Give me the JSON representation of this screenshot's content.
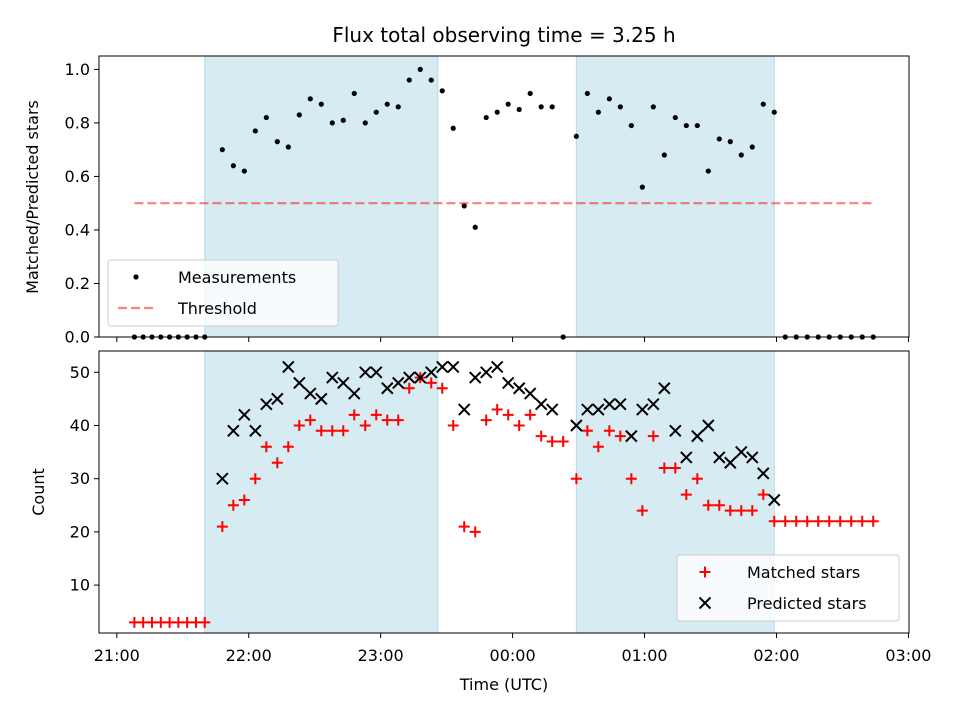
{
  "chart_data": [
    {
      "type": "scatter",
      "title": "Flux total observing time = 3.25 h",
      "xlabel": "",
      "ylabel": "Matched/Predicted stars",
      "ylim": [
        0,
        1.05
      ],
      "yticks": [
        "0.0",
        "0.2",
        "0.4",
        "0.6",
        "0.8",
        "1.0"
      ],
      "ytick_values": [
        0,
        0.2,
        0.4,
        0.6,
        0.8,
        1.0
      ],
      "x_range": [
        "21:00",
        "03:00"
      ],
      "shaded_intervals": [
        [
          "21:40",
          "23:26"
        ],
        [
          "00:29",
          "01:59"
        ]
      ],
      "shade_color": "#add8e6",
      "legend_position": "lower-left",
      "series": [
        {
          "name": "Measurements",
          "marker": "dot",
          "color": "#000000",
          "points": [
            [
              "21:08",
              0
            ],
            [
              "21:12",
              0
            ],
            [
              "21:16",
              0
            ],
            [
              "21:20",
              0
            ],
            [
              "21:24",
              0
            ],
            [
              "21:28",
              0
            ],
            [
              "21:32",
              0
            ],
            [
              "21:36",
              0
            ],
            [
              "21:40",
              0
            ],
            [
              "21:48",
              0.7
            ],
            [
              "21:53",
              0.64
            ],
            [
              "21:58",
              0.62
            ],
            [
              "22:03",
              0.77
            ],
            [
              "22:08",
              0.82
            ],
            [
              "22:13",
              0.73
            ],
            [
              "22:18",
              0.71
            ],
            [
              "22:23",
              0.83
            ],
            [
              "22:28",
              0.89
            ],
            [
              "22:33",
              0.87
            ],
            [
              "22:38",
              0.8
            ],
            [
              "22:43",
              0.81
            ],
            [
              "22:48",
              0.91
            ],
            [
              "22:53",
              0.8
            ],
            [
              "22:58",
              0.84
            ],
            [
              "23:03",
              0.87
            ],
            [
              "23:08",
              0.86
            ],
            [
              "23:13",
              0.96
            ],
            [
              "23:18",
              1.0
            ],
            [
              "23:23",
              0.96
            ],
            [
              "23:28",
              0.92
            ],
            [
              "23:33",
              0.78
            ],
            [
              "23:38",
              0.49
            ],
            [
              "23:43",
              0.41
            ],
            [
              "23:48",
              0.82
            ],
            [
              "23:53",
              0.84
            ],
            [
              "23:58",
              0.87
            ],
            [
              "00:03",
              0.85
            ],
            [
              "00:08",
              0.91
            ],
            [
              "00:13",
              0.86
            ],
            [
              "00:18",
              0.86
            ],
            [
              "00:23",
              0.0
            ],
            [
              "00:29",
              0.75
            ],
            [
              "00:34",
              0.91
            ],
            [
              "00:39",
              0.84
            ],
            [
              "00:44",
              0.89
            ],
            [
              "00:49",
              0.86
            ],
            [
              "00:54",
              0.79
            ],
            [
              "00:59",
              0.56
            ],
            [
              "01:04",
              0.86
            ],
            [
              "01:09",
              0.68
            ],
            [
              "01:14",
              0.82
            ],
            [
              "01:19",
              0.79
            ],
            [
              "01:24",
              0.79
            ],
            [
              "01:29",
              0.62
            ],
            [
              "01:34",
              0.74
            ],
            [
              "01:39",
              0.73
            ],
            [
              "01:44",
              0.68
            ],
            [
              "01:49",
              0.71
            ],
            [
              "01:54",
              0.87
            ],
            [
              "01:59",
              0.84
            ],
            [
              "02:04",
              0
            ],
            [
              "02:09",
              0
            ],
            [
              "02:14",
              0
            ],
            [
              "02:19",
              0
            ],
            [
              "02:24",
              0
            ],
            [
              "02:29",
              0
            ],
            [
              "02:34",
              0
            ],
            [
              "02:39",
              0
            ],
            [
              "02:44",
              0
            ]
          ]
        },
        {
          "name": "Threshold",
          "marker": "dashed-line",
          "color": "#ff0000",
          "alpha": 0.5,
          "points": [
            [
              "21:08",
              0.5
            ],
            [
              "02:44",
              0.5
            ]
          ]
        }
      ]
    },
    {
      "type": "scatter",
      "title": "",
      "xlabel": "Time (UTC)",
      "ylabel": "Count",
      "ylim": [
        1,
        54
      ],
      "yticks": [
        "10",
        "20",
        "30",
        "40",
        "50"
      ],
      "ytick_values": [
        10,
        20,
        30,
        40,
        50
      ],
      "x_range": [
        "21:00",
        "03:00"
      ],
      "xticks": [
        "21:00",
        "22:00",
        "23:00",
        "00:00",
        "01:00",
        "02:00",
        "03:00"
      ],
      "shaded_intervals": [
        [
          "21:40",
          "23:26"
        ],
        [
          "00:29",
          "01:59"
        ]
      ],
      "shade_color": "#add8e6",
      "legend_position": "lower-right",
      "series": [
        {
          "name": "Matched stars",
          "marker": "plus",
          "color": "#ff0000",
          "points": [
            [
              "21:08",
              3
            ],
            [
              "21:12",
              3
            ],
            [
              "21:16",
              3
            ],
            [
              "21:20",
              3
            ],
            [
              "21:24",
              3
            ],
            [
              "21:28",
              3
            ],
            [
              "21:32",
              3
            ],
            [
              "21:36",
              3
            ],
            [
              "21:40",
              3
            ],
            [
              "21:48",
              21
            ],
            [
              "21:53",
              25
            ],
            [
              "21:58",
              26
            ],
            [
              "22:03",
              30
            ],
            [
              "22:08",
              36
            ],
            [
              "22:13",
              33
            ],
            [
              "22:18",
              36
            ],
            [
              "22:23",
              40
            ],
            [
              "22:28",
              41
            ],
            [
              "22:33",
              39
            ],
            [
              "22:38",
              39
            ],
            [
              "22:43",
              39
            ],
            [
              "22:48",
              42
            ],
            [
              "22:53",
              40
            ],
            [
              "22:58",
              42
            ],
            [
              "23:03",
              41
            ],
            [
              "23:08",
              41
            ],
            [
              "23:13",
              47
            ],
            [
              "23:18",
              49
            ],
            [
              "23:23",
              48
            ],
            [
              "23:28",
              47
            ],
            [
              "23:33",
              40
            ],
            [
              "23:38",
              21
            ],
            [
              "23:43",
              20
            ],
            [
              "23:48",
              41
            ],
            [
              "23:53",
              43
            ],
            [
              "23:58",
              42
            ],
            [
              "00:03",
              40
            ],
            [
              "00:08",
              42
            ],
            [
              "00:13",
              38
            ],
            [
              "00:18",
              37
            ],
            [
              "00:23",
              37
            ],
            [
              "00:29",
              30
            ],
            [
              "00:34",
              39
            ],
            [
              "00:39",
              36
            ],
            [
              "00:44",
              39
            ],
            [
              "00:49",
              38
            ],
            [
              "00:54",
              30
            ],
            [
              "00:59",
              24
            ],
            [
              "01:04",
              38
            ],
            [
              "01:09",
              32
            ],
            [
              "01:14",
              32
            ],
            [
              "01:19",
              27
            ],
            [
              "01:24",
              30
            ],
            [
              "01:29",
              25
            ],
            [
              "01:34",
              25
            ],
            [
              "01:39",
              24
            ],
            [
              "01:44",
              24
            ],
            [
              "01:49",
              24
            ],
            [
              "01:54",
              27
            ],
            [
              "01:59",
              22
            ],
            [
              "02:04",
              22
            ],
            [
              "02:09",
              22
            ],
            [
              "02:14",
              22
            ],
            [
              "02:19",
              22
            ],
            [
              "02:24",
              22
            ],
            [
              "02:29",
              22
            ],
            [
              "02:34",
              22
            ],
            [
              "02:39",
              22
            ],
            [
              "02:44",
              22
            ]
          ]
        },
        {
          "name": "Predicted stars",
          "marker": "x",
          "color": "#000000",
          "points": [
            [
              "21:48",
              30
            ],
            [
              "21:53",
              39
            ],
            [
              "21:58",
              42
            ],
            [
              "22:03",
              39
            ],
            [
              "22:08",
              44
            ],
            [
              "22:13",
              45
            ],
            [
              "22:18",
              51
            ],
            [
              "22:23",
              48
            ],
            [
              "22:28",
              46
            ],
            [
              "22:33",
              45
            ],
            [
              "22:38",
              49
            ],
            [
              "22:43",
              48
            ],
            [
              "22:48",
              46
            ],
            [
              "22:53",
              50
            ],
            [
              "22:58",
              50
            ],
            [
              "23:03",
              47
            ],
            [
              "23:08",
              48
            ],
            [
              "23:13",
              49
            ],
            [
              "23:18",
              49
            ],
            [
              "23:23",
              50
            ],
            [
              "23:28",
              51
            ],
            [
              "23:33",
              51
            ],
            [
              "23:38",
              43
            ],
            [
              "23:43",
              49
            ],
            [
              "23:48",
              50
            ],
            [
              "23:53",
              51
            ],
            [
              "23:58",
              48
            ],
            [
              "00:03",
              47
            ],
            [
              "00:08",
              46
            ],
            [
              "00:13",
              44
            ],
            [
              "00:18",
              43
            ],
            [
              "00:29",
              40
            ],
            [
              "00:34",
              43
            ],
            [
              "00:39",
              43
            ],
            [
              "00:44",
              44
            ],
            [
              "00:49",
              44
            ],
            [
              "00:54",
              38
            ],
            [
              "00:59",
              43
            ],
            [
              "01:04",
              44
            ],
            [
              "01:09",
              47
            ],
            [
              "01:14",
              39
            ],
            [
              "01:19",
              34
            ],
            [
              "01:24",
              38
            ],
            [
              "01:29",
              40
            ],
            [
              "01:34",
              34
            ],
            [
              "01:39",
              33
            ],
            [
              "01:44",
              35
            ],
            [
              "01:49",
              34
            ],
            [
              "01:54",
              31
            ],
            [
              "01:59",
              26
            ]
          ]
        }
      ]
    }
  ]
}
